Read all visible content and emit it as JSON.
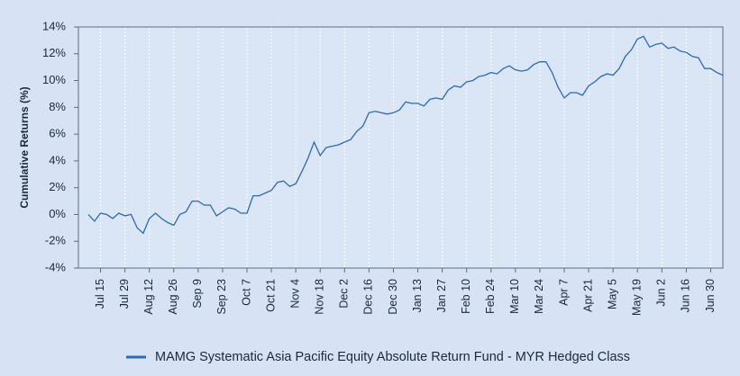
{
  "chart_data": {
    "type": "line",
    "ylabel": "Cumulative Returns (%)",
    "categories": [
      null,
      null,
      "Jul 15",
      null,
      null,
      null,
      "Jul 29",
      null,
      null,
      null,
      "Aug 12",
      null,
      null,
      null,
      "Aug 26",
      null,
      null,
      null,
      "Sep 9",
      null,
      null,
      null,
      "Sep 23",
      null,
      null,
      null,
      "Oct 7",
      null,
      null,
      null,
      "Oct 21",
      null,
      null,
      null,
      "Nov 4",
      null,
      null,
      null,
      "Nov 18",
      null,
      null,
      null,
      "Dec 2",
      null,
      null,
      null,
      "Dec 16",
      null,
      null,
      null,
      "Dec 30",
      null,
      null,
      null,
      "Jan 13",
      null,
      null,
      null,
      "Jan 27",
      null,
      null,
      null,
      "Feb 10",
      null,
      null,
      null,
      "Feb 24",
      null,
      null,
      null,
      "Mar 10",
      null,
      null,
      null,
      "Mar 24",
      null,
      null,
      null,
      "Apr 7",
      null,
      null,
      null,
      "Apr 21",
      null,
      null,
      null,
      "May 5",
      null,
      null,
      null,
      "May 19",
      null,
      null,
      null,
      "Jun 2",
      null,
      null,
      null,
      "Jun 16",
      null,
      null,
      null,
      "Jun 30",
      null,
      null
    ],
    "series": [
      {
        "name": "MAMG Systematic Asia Pacific Equity Absolute Return Fund - MYR Hedged Class",
        "color": "#2b6cb4",
        "values": [
          0.0,
          -0.5,
          0.1,
          0.0,
          -0.3,
          0.1,
          -0.1,
          0.0,
          -1.0,
          -1.4,
          -0.3,
          0.1,
          -0.3,
          -0.6,
          -0.8,
          0.0,
          0.2,
          1.0,
          1.0,
          0.7,
          0.7,
          -0.1,
          0.2,
          0.5,
          0.4,
          0.1,
          0.1,
          1.4,
          1.4,
          1.6,
          1.8,
          2.4,
          2.5,
          2.1,
          2.3,
          3.2,
          4.2,
          5.4,
          4.4,
          5.0,
          5.1,
          5.2,
          5.4,
          5.6,
          6.2,
          6.6,
          7.6,
          7.7,
          7.6,
          7.5,
          7.6,
          7.8,
          8.4,
          8.3,
          8.3,
          8.1,
          8.6,
          8.7,
          8.6,
          9.3,
          9.6,
          9.5,
          9.9,
          10.0,
          10.3,
          10.4,
          10.6,
          10.5,
          10.9,
          11.1,
          10.8,
          10.7,
          10.8,
          11.2,
          11.4,
          11.4,
          10.6,
          9.5,
          8.7,
          9.1,
          9.1,
          8.9,
          9.6,
          9.9,
          10.3,
          10.5,
          10.4,
          10.9,
          11.8,
          12.3,
          13.1,
          13.3,
          12.5,
          12.7,
          12.8,
          12.4,
          12.5,
          12.2,
          12.1,
          11.8,
          11.7,
          10.9,
          10.9,
          10.6,
          10.4
        ]
      }
    ],
    "ylim": [
      -4,
      14
    ],
    "yticks": [
      {
        "value": -4,
        "label": "-4%"
      },
      {
        "value": -2,
        "label": "-2%"
      },
      {
        "value": 0,
        "label": "0%"
      },
      {
        "value": 2,
        "label": "2%"
      },
      {
        "value": 4,
        "label": "4%"
      },
      {
        "value": 6,
        "label": "6%"
      },
      {
        "value": 8,
        "label": "8%"
      },
      {
        "value": 10,
        "label": "10%"
      },
      {
        "value": 12,
        "label": "12%"
      },
      {
        "value": 14,
        "label": "14%"
      }
    ],
    "grid": true,
    "legend": "bottom"
  }
}
